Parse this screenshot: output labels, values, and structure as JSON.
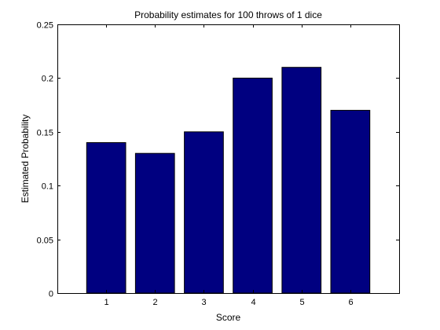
{
  "chart_data": {
    "type": "bar",
    "title": "Probability estimates for 100 throws of 1 dice",
    "xlabel": "Score",
    "ylabel": "Estimated Probability",
    "categories": [
      "1",
      "2",
      "3",
      "4",
      "5",
      "6"
    ],
    "values": [
      0.14,
      0.13,
      0.15,
      0.2,
      0.21,
      0.17
    ],
    "ylim": [
      0,
      0.25
    ],
    "xlim": [
      0,
      7
    ],
    "yticks": [
      0,
      0.05,
      0.1,
      0.15,
      0.2,
      0.25
    ],
    "ytick_labels": [
      "0",
      "0.05",
      "0.1",
      "0.15",
      "0.2",
      "0.25"
    ],
    "grid": false,
    "legend": "none",
    "bar_color": "#000080",
    "bar_edge_color": "#000000"
  }
}
